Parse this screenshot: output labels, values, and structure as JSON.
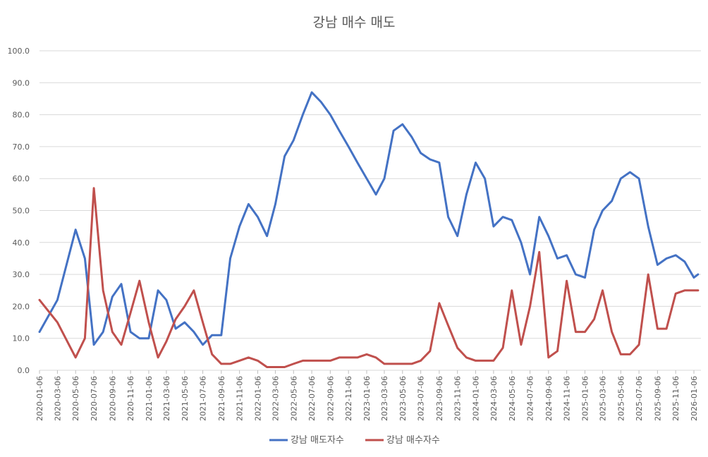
{
  "chart_data": {
    "type": "line",
    "title": "강남 매수 매도",
    "xlabel": "",
    "ylabel": "",
    "ylim": [
      0,
      100
    ],
    "y_ticks": [
      "0.0",
      "10.0",
      "20.0",
      "30.0",
      "40.0",
      "50.0",
      "60.0",
      "70.0",
      "80.0",
      "90.0",
      "100.0"
    ],
    "grid": true,
    "legend_position": "bottom",
    "x_tick_labels": [
      "2020-01-06",
      "2020-03-06",
      "2020-05-06",
      "2020-07-06",
      "2020-09-06",
      "2020-11-06",
      "2021-01-06",
      "2021-03-06",
      "2021-05-06",
      "2021-07-06",
      "2021-09-06",
      "2021-11-06",
      "2022-01-06",
      "2022-03-06",
      "2022-05-06",
      "2022-07-06",
      "2022-09-06",
      "2022-11-06",
      "2023-01-06",
      "2023-03-06",
      "2023-05-06",
      "2023-07-06",
      "2023-09-06",
      "2023-11-06",
      "2024-01-06",
      "2024-03-06",
      "2024-05-06",
      "2024-07-06",
      "2024-09-06",
      "2024-11-06",
      "2025-01-06",
      "2025-03-06",
      "2025-05-06",
      "2025-07-06",
      "2025-09-06",
      "2025-11-06",
      "2026-01-06"
    ],
    "x": [
      "2020-01-06",
      "2020-03-06",
      "2020-05-06",
      "2020-06-06",
      "2020-07-06",
      "2020-08-06",
      "2020-09-06",
      "2020-10-06",
      "2020-11-06",
      "2020-12-06",
      "2021-01-06",
      "2021-02-06",
      "2021-03-06",
      "2021-04-06",
      "2021-05-06",
      "2021-06-06",
      "2021-07-06",
      "2021-08-06",
      "2021-09-06",
      "2021-10-06",
      "2021-11-06",
      "2021-12-06",
      "2022-01-06",
      "2022-02-06",
      "2022-03-06",
      "2022-04-06",
      "2022-05-06",
      "2022-06-06",
      "2022-07-06",
      "2022-08-06",
      "2022-09-06",
      "2022-10-06",
      "2022-11-06",
      "2022-12-06",
      "2023-01-06",
      "2023-02-06",
      "2023-03-06",
      "2023-04-06",
      "2023-05-06",
      "2023-06-06",
      "2023-07-06",
      "2023-08-06",
      "2023-09-06",
      "2023-10-06",
      "2023-11-06",
      "2023-12-06",
      "2024-01-06",
      "2024-02-06",
      "2024-03-06",
      "2024-04-06",
      "2024-05-06",
      "2024-06-06",
      "2024-07-06",
      "2024-08-06",
      "2024-09-06",
      "2024-10-06",
      "2024-11-06",
      "2024-12-06",
      "2025-01-06",
      "2025-02-06",
      "2025-03-06",
      "2025-04-06",
      "2025-05-06",
      "2025-06-06",
      "2025-07-06",
      "2025-08-06",
      "2025-09-06",
      "2025-10-06",
      "2025-11-06",
      "2025-12-06",
      "2026-01-06",
      "2026-01-20"
    ],
    "series": [
      {
        "name": "강남 매도자수",
        "color": "#4472C4",
        "values": [
          12,
          22,
          44,
          35,
          8,
          12,
          23,
          27,
          12,
          10,
          10,
          25,
          22,
          13,
          15,
          12,
          8,
          11,
          11,
          35,
          45,
          52,
          48,
          42,
          52,
          67,
          72,
          80,
          87,
          84,
          80,
          75,
          70,
          65,
          60,
          55,
          60,
          75,
          77,
          73,
          68,
          66,
          65,
          48,
          42,
          55,
          65,
          60,
          45,
          48,
          47,
          40,
          30,
          48,
          42,
          35,
          36,
          30,
          29,
          44,
          50,
          53,
          60,
          62,
          60,
          45,
          33,
          35,
          36,
          34,
          29,
          30
        ],
        "x_count_note": ""
      },
      {
        "name": "강남 매수자수",
        "color": "#C0504D",
        "values": [
          22,
          15,
          4,
          10,
          57,
          25,
          12,
          8,
          18,
          28,
          15,
          4,
          9,
          16,
          20,
          25,
          15,
          5,
          2,
          2,
          3,
          4,
          3,
          1,
          1,
          1,
          2,
          3,
          3,
          3,
          3,
          4,
          4,
          4,
          5,
          4,
          2,
          2,
          2,
          2,
          3,
          6,
          21,
          14,
          7,
          4,
          3,
          3,
          3,
          7,
          25,
          8,
          20,
          37,
          4,
          6,
          28,
          12,
          12,
          16,
          25,
          12,
          5,
          5,
          8,
          30,
          13,
          13,
          24,
          25,
          25,
          25
        ]
      }
    ]
  }
}
